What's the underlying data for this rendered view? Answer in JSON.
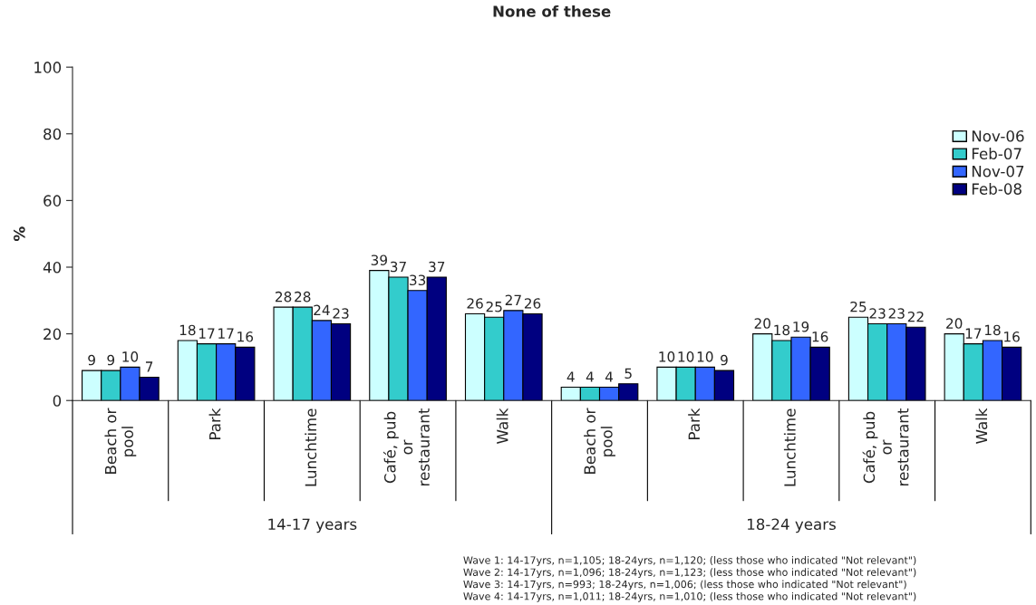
{
  "chart_data": {
    "type": "bar",
    "title": "None of these",
    "ylabel": "%",
    "categories": [
      "Beach or\npool",
      "Park",
      "Lunchtime",
      "Café, pub\nor\nrestaurant",
      "Walk",
      "Beach or\npool",
      "Park",
      "Lunchtime",
      "Café, pub\nor\nrestaurant",
      "Walk"
    ],
    "series": [
      {
        "name": "Nov-06",
        "color": "#ccffff",
        "values": [
          9,
          18,
          28,
          39,
          26,
          4,
          10,
          20,
          25,
          20
        ]
      },
      {
        "name": "Feb-07",
        "color": "#33cccc",
        "values": [
          9,
          17,
          28,
          37,
          25,
          4,
          10,
          18,
          23,
          17
        ]
      },
      {
        "name": "Nov-07",
        "color": "#3366ff",
        "values": [
          10,
          17,
          24,
          33,
          27,
          4,
          10,
          19,
          23,
          18
        ]
      },
      {
        "name": "Feb-08",
        "color": "#000080",
        "values": [
          7,
          16,
          23,
          37,
          26,
          5,
          9,
          16,
          22,
          16
        ]
      }
    ],
    "ylim": [
      0,
      100
    ],
    "yticks": [
      0,
      20,
      40,
      60,
      80,
      100
    ],
    "grid": false,
    "legend": "right",
    "data_labels": true,
    "annotations": [
      "14-17 years",
      "18-24 years",
      "Wave 1: 14-17yrs, n=1,105; 18-24yrs, n=1,120; (less those who indicated \"Not relevant\")\nWave 2: 14-17yrs, n=1,096; 18-24yrs, n=1,123; (less those who indicated \"Not relevant\")\nWave 3: 14-17yrs, n=993; 18-24yrs, n=1,006; (less those who indicated \"Not relevant\")\nWave 4: 14-17yrs, n=1,011; 18-24yrs, n=1,010; (less those who indicated \"Not relevant\")"
    ]
  }
}
